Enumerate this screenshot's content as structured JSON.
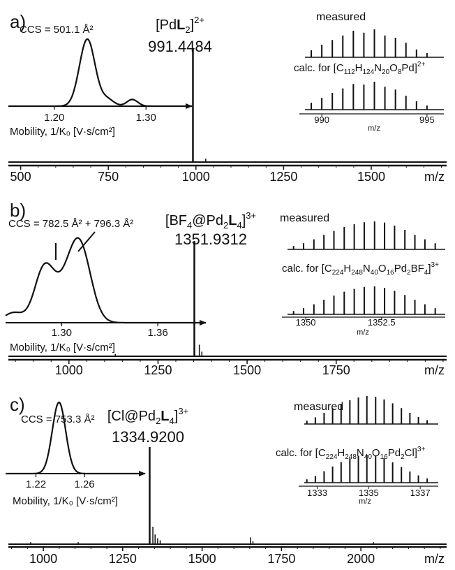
{
  "chart_data": [
    {
      "type": "line",
      "panel_label": "a)",
      "main_spectrum": {
        "xlabel": "m/z",
        "xlim": [
          465,
          1715
        ],
        "x_ticks": [
          500,
          750,
          1000,
          1250,
          1500
        ],
        "peaks": [
          {
            "mz": 991.4484,
            "rel": 1.0
          },
          {
            "mz": 1028,
            "rel": 0.03
          }
        ],
        "annotation": {
          "pre": "[Pd",
          "bold": "L",
          "sub": "2",
          "post": "]",
          "sup": "2+",
          "value": "991.4484",
          "mz": 991.4484
        }
      },
      "mobility_inset": {
        "ccs_label": "CCS = 501.1 Å²",
        "xlabel": "Mobility, 1/K₀ [V·s/cm²]",
        "xlim": [
          1.15,
          1.35
        ],
        "x_ticks": [
          1.2,
          1.3
        ],
        "peaks": [
          {
            "x": 1.236,
            "h": 1.0,
            "w": 0.0085
          },
          {
            "x": 1.258,
            "h": 0.1,
            "w": 0.007
          },
          {
            "x": 1.285,
            "h": 0.1,
            "w": 0.006
          }
        ]
      },
      "isotope_inset": {
        "measured_label": "measured",
        "calc_label": {
          "pre": "calc. for [",
          "formula": [
            [
              "C",
              "112"
            ],
            [
              "H",
              "124"
            ],
            [
              "N",
              "20"
            ],
            [
              "O",
              "8"
            ],
            [
              "Pd",
              ""
            ]
          ],
          "post": "]",
          "sup": "2+"
        },
        "xlabel": "m/z",
        "xlim": [
          989.2,
          995.8
        ],
        "x_ticks": [
          990,
          995
        ],
        "spacing": 0.5,
        "measured": [
          {
            "mz": 989.5,
            "rel": 0.25
          },
          {
            "mz": 990.0,
            "rel": 0.45
          },
          {
            "mz": 990.5,
            "rel": 0.62
          },
          {
            "mz": 991.0,
            "rel": 0.78
          },
          {
            "mz": 991.5,
            "rel": 0.95
          },
          {
            "mz": 992.0,
            "rel": 0.88
          },
          {
            "mz": 992.5,
            "rel": 1.0
          },
          {
            "mz": 993.0,
            "rel": 0.78
          },
          {
            "mz": 993.5,
            "rel": 0.7
          },
          {
            "mz": 994.0,
            "rel": 0.52
          },
          {
            "mz": 994.5,
            "rel": 0.28
          },
          {
            "mz": 995.0,
            "rel": 0.15
          }
        ],
        "calculated": [
          {
            "mz": 989.5,
            "rel": 0.25
          },
          {
            "mz": 990.0,
            "rel": 0.42
          },
          {
            "mz": 990.5,
            "rel": 0.6
          },
          {
            "mz": 991.0,
            "rel": 0.76
          },
          {
            "mz": 991.5,
            "rel": 0.92
          },
          {
            "mz": 992.0,
            "rel": 0.9
          },
          {
            "mz": 992.5,
            "rel": 1.0
          },
          {
            "mz": 993.0,
            "rel": 0.82
          },
          {
            "mz": 993.5,
            "rel": 0.72
          },
          {
            "mz": 994.0,
            "rel": 0.5
          },
          {
            "mz": 994.5,
            "rel": 0.3
          },
          {
            "mz": 995.0,
            "rel": 0.15
          }
        ]
      }
    },
    {
      "type": "line",
      "panel_label": "b)",
      "main_spectrum": {
        "xlabel": "m/z",
        "xlim": [
          830,
          2060
        ],
        "x_ticks": [
          1000,
          1250,
          1500,
          1750
        ],
        "peaks": [
          {
            "mz": 1351.9312,
            "rel": 1.0
          },
          {
            "mz": 1366,
            "rel": 0.1
          },
          {
            "mz": 1373,
            "rel": 0.04
          },
          {
            "mz": 1130,
            "rel": 0.02
          }
        ],
        "annotation": {
          "pre": "[BF",
          "pre_sub": "4",
          "mid": "@Pd",
          "mid_sub": "2",
          "bold": "L",
          "sub": "4",
          "post": "]",
          "sup": "3+",
          "value": "1351.9312",
          "mz": 1351.9312
        }
      },
      "mobility_inset": {
        "ccs_label": "CCS = 782.5 Å² + 796.3 Å²",
        "xlabel": "Mobility, 1/K₀ [V·s/cm²]",
        "xlim": [
          1.265,
          1.39
        ],
        "x_ticks": [
          1.3,
          1.36
        ],
        "peaks": [
          {
            "x": 1.289,
            "h": 0.62,
            "w": 0.006
          },
          {
            "x": 1.311,
            "h": 0.93,
            "w": 0.007
          },
          {
            "x": 1.3,
            "h": 0.25,
            "w": 0.007
          },
          {
            "x": 1.27,
            "h": 0.12,
            "w": 0.006
          }
        ]
      },
      "isotope_inset": {
        "measured_label": "measured",
        "calc_label": {
          "pre": "calc. for [",
          "formula": [
            [
              "C",
              "224"
            ],
            [
              "H",
              "248"
            ],
            [
              "N",
              "40"
            ],
            [
              "O",
              "16"
            ],
            [
              "Pd",
              "2"
            ],
            [
              "BF",
              "4"
            ]
          ],
          "post": "]",
          "sup": "3+"
        },
        "xlabel": "m/z",
        "xlim": [
          1349.4,
          1354.6
        ],
        "x_ticks": [
          1350.0,
          1352.5
        ],
        "spacing": 0.333,
        "measured": [
          {
            "mz": 1349.6,
            "rel": 0.12
          },
          {
            "mz": 1349.93,
            "rel": 0.22
          },
          {
            "mz": 1350.27,
            "rel": 0.36
          },
          {
            "mz": 1350.6,
            "rel": 0.52
          },
          {
            "mz": 1350.93,
            "rel": 0.66
          },
          {
            "mz": 1351.27,
            "rel": 0.8
          },
          {
            "mz": 1351.6,
            "rel": 0.9
          },
          {
            "mz": 1351.93,
            "rel": 0.97
          },
          {
            "mz": 1352.27,
            "rel": 1.0
          },
          {
            "mz": 1352.6,
            "rel": 0.96
          },
          {
            "mz": 1352.93,
            "rel": 0.85
          },
          {
            "mz": 1353.27,
            "rel": 0.7
          },
          {
            "mz": 1353.6,
            "rel": 0.52
          },
          {
            "mz": 1353.93,
            "rel": 0.36
          },
          {
            "mz": 1354.27,
            "rel": 0.22
          }
        ],
        "calculated": [
          {
            "mz": 1349.6,
            "rel": 0.12
          },
          {
            "mz": 1349.93,
            "rel": 0.22
          },
          {
            "mz": 1350.27,
            "rel": 0.36
          },
          {
            "mz": 1350.6,
            "rel": 0.52
          },
          {
            "mz": 1350.93,
            "rel": 0.67
          },
          {
            "mz": 1351.27,
            "rel": 0.81
          },
          {
            "mz": 1351.6,
            "rel": 0.91
          },
          {
            "mz": 1351.93,
            "rel": 0.98
          },
          {
            "mz": 1352.27,
            "rel": 1.0
          },
          {
            "mz": 1352.6,
            "rel": 0.95
          },
          {
            "mz": 1352.93,
            "rel": 0.84
          },
          {
            "mz": 1353.27,
            "rel": 0.69
          },
          {
            "mz": 1353.6,
            "rel": 0.52
          },
          {
            "mz": 1353.93,
            "rel": 0.36
          },
          {
            "mz": 1354.27,
            "rel": 0.22
          }
        ]
      }
    },
    {
      "type": "line",
      "panel_label": "c)",
      "main_spectrum": {
        "xlabel": "m/z",
        "xlim": [
          890,
          2270
        ],
        "x_ticks": [
          1000,
          1250,
          1500,
          1750,
          2000
        ],
        "peaks": [
          {
            "mz": 1334.92,
            "rel": 1.0
          },
          {
            "mz": 1345,
            "rel": 0.18
          },
          {
            "mz": 1352,
            "rel": 0.1
          },
          {
            "mz": 1360,
            "rel": 0.06
          },
          {
            "mz": 1368,
            "rel": 0.04
          },
          {
            "mz": 1652,
            "rel": 0.07
          },
          {
            "mz": 1660,
            "rel": 0.03
          },
          {
            "mz": 2040,
            "rel": 0.02
          },
          {
            "mz": 960,
            "rel": 0.02
          },
          {
            "mz": 1110,
            "rel": 0.02
          }
        ],
        "annotation": {
          "pre": "[Cl@Pd",
          "pre_sub": "2",
          "bold": "L",
          "sub": "4",
          "post": "]",
          "sup": "3+",
          "value": "1334.9200",
          "mz": 1334.92
        }
      },
      "mobility_inset": {
        "ccs_label": "CCS = 753.3 Å²",
        "xlabel": "Mobility, 1/K₀ [V·s/cm²]",
        "xlim": [
          1.195,
          1.31
        ],
        "x_ticks": [
          1.22,
          1.26
        ],
        "peaks": [
          {
            "x": 1.239,
            "h": 1.0,
            "w": 0.0055
          }
        ]
      },
      "isotope_inset": {
        "measured_label": "measured",
        "calc_label": {
          "pre": "calc. for [",
          "formula": [
            [
              "C",
              "224"
            ],
            [
              "H",
              "248"
            ],
            [
              "N",
              "40"
            ],
            [
              "O",
              "16"
            ],
            [
              "Pd",
              "2"
            ],
            [
              "Cl",
              ""
            ]
          ],
          "post": "]",
          "sup": "3+"
        },
        "xlabel": "m/z",
        "xlim": [
          1332.5,
          1337.7
        ],
        "x_ticks": [
          1333,
          1335,
          1337
        ],
        "spacing": 0.333,
        "measured": [
          {
            "mz": 1332.6,
            "rel": 0.12
          },
          {
            "mz": 1332.93,
            "rel": 0.24
          },
          {
            "mz": 1333.27,
            "rel": 0.4
          },
          {
            "mz": 1333.6,
            "rel": 0.57
          },
          {
            "mz": 1333.93,
            "rel": 0.72
          },
          {
            "mz": 1334.27,
            "rel": 0.85
          },
          {
            "mz": 1334.6,
            "rel": 0.95
          },
          {
            "mz": 1334.93,
            "rel": 1.0
          },
          {
            "mz": 1335.27,
            "rel": 0.97
          },
          {
            "mz": 1335.6,
            "rel": 0.88
          },
          {
            "mz": 1335.93,
            "rel": 0.74
          },
          {
            "mz": 1336.27,
            "rel": 0.57
          },
          {
            "mz": 1336.6,
            "rel": 0.4
          },
          {
            "mz": 1336.93,
            "rel": 0.25
          },
          {
            "mz": 1337.27,
            "rel": 0.14
          }
        ],
        "calculated": [
          {
            "mz": 1332.6,
            "rel": 0.12
          },
          {
            "mz": 1332.93,
            "rel": 0.24
          },
          {
            "mz": 1333.27,
            "rel": 0.41
          },
          {
            "mz": 1333.6,
            "rel": 0.58
          },
          {
            "mz": 1333.93,
            "rel": 0.74
          },
          {
            "mz": 1334.27,
            "rel": 0.87
          },
          {
            "mz": 1334.6,
            "rel": 0.96
          },
          {
            "mz": 1334.93,
            "rel": 1.0
          },
          {
            "mz": 1335.27,
            "rel": 0.96
          },
          {
            "mz": 1335.6,
            "rel": 0.87
          },
          {
            "mz": 1335.93,
            "rel": 0.73
          },
          {
            "mz": 1336.27,
            "rel": 0.56
          },
          {
            "mz": 1336.6,
            "rel": 0.4
          },
          {
            "mz": 1336.93,
            "rel": 0.26
          },
          {
            "mz": 1337.27,
            "rel": 0.15
          }
        ]
      }
    }
  ]
}
